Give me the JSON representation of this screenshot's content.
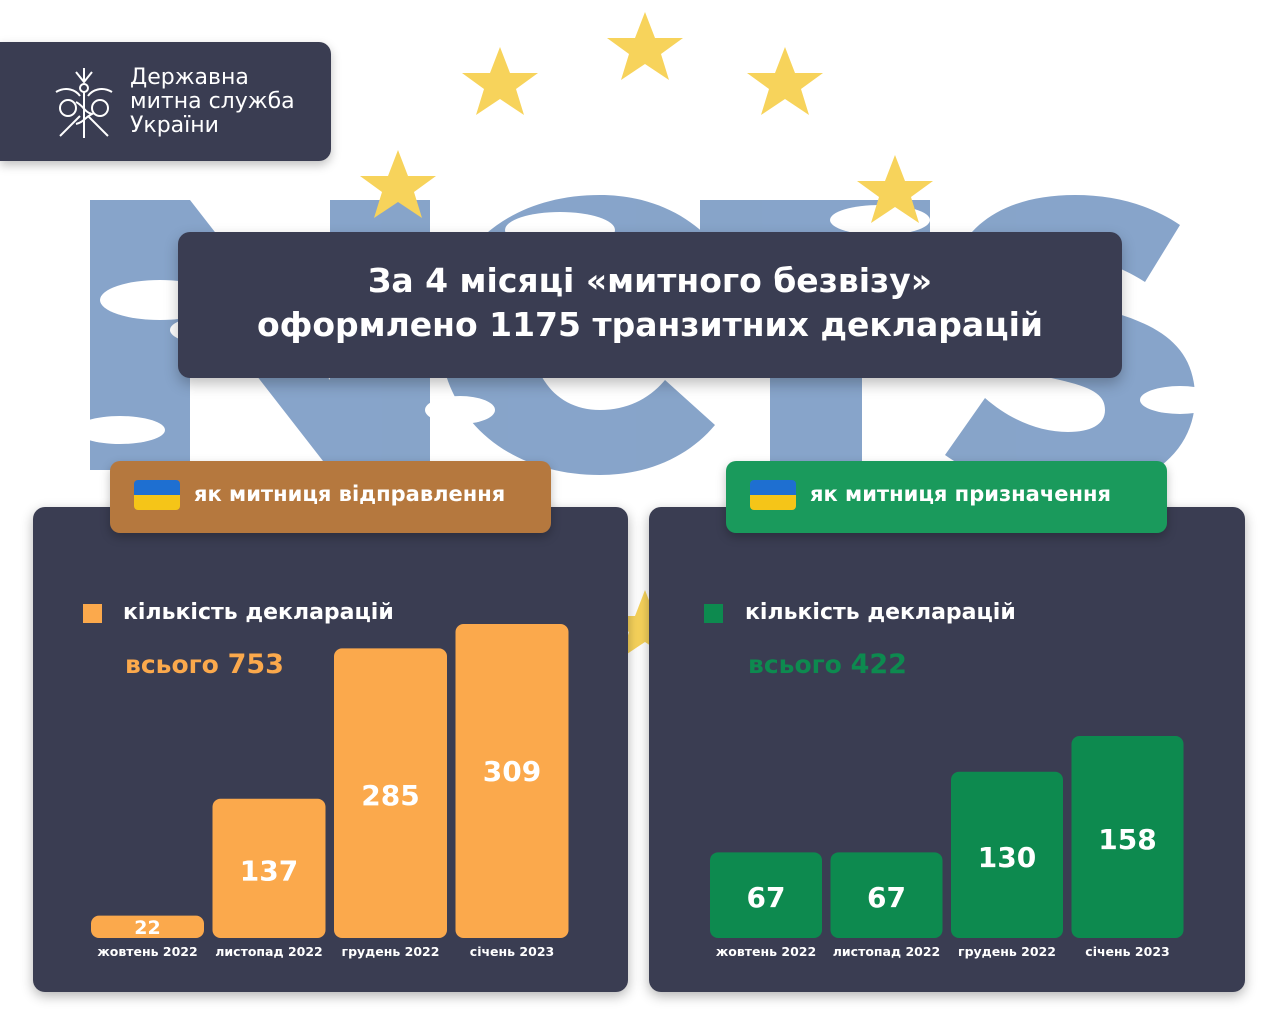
{
  "org": {
    "name_lines": [
      "Державна",
      "митна служба",
      "України"
    ],
    "emblem_icon": "customs-emblem-icon"
  },
  "background": {
    "watermark_text": "NCTS",
    "star_color": "#f7d35b",
    "letter_color": "#5f86b8"
  },
  "headline": {
    "line1": "За 4 місяці «митного безвізу»",
    "line2": "оформлено 1175 транзитних декларацій"
  },
  "left": {
    "tab_label": "як митниця відправлення",
    "flag_icon": "ukraine-flag-icon",
    "legend_label": "кількість декларацій",
    "total_prefix": "всього",
    "total_value": "753",
    "accent": "#fba94c"
  },
  "right": {
    "tab_label": "як митниця призначення",
    "flag_icon": "ukraine-flag-icon",
    "legend_label": "кількість декларацій",
    "total_prefix": "всього",
    "total_value": "422",
    "accent": "#0d8a4f"
  },
  "chart_data": [
    {
      "type": "bar",
      "title": "як митниця відправлення",
      "categories": [
        "жовтень 2022",
        "листопад 2022",
        "грудень 2022",
        "січень 2023"
      ],
      "series": [
        {
          "name": "кількість декларацій",
          "values": [
            22,
            137,
            285,
            309
          ]
        }
      ],
      "total": 753,
      "color": "#fba94c",
      "ylim": [
        0,
        309
      ],
      "grid": false,
      "legend": "top-left"
    },
    {
      "type": "bar",
      "title": "як митниця призначення",
      "categories": [
        "жовтень 2022",
        "листопад 2022",
        "грудень 2022",
        "січень 2023"
      ],
      "series": [
        {
          "name": "кількість декларацій",
          "values": [
            67,
            67,
            130,
            158
          ]
        }
      ],
      "total": 422,
      "color": "#0d8a4f",
      "ylim": [
        0,
        158
      ],
      "grid": false,
      "legend": "top-left"
    }
  ]
}
